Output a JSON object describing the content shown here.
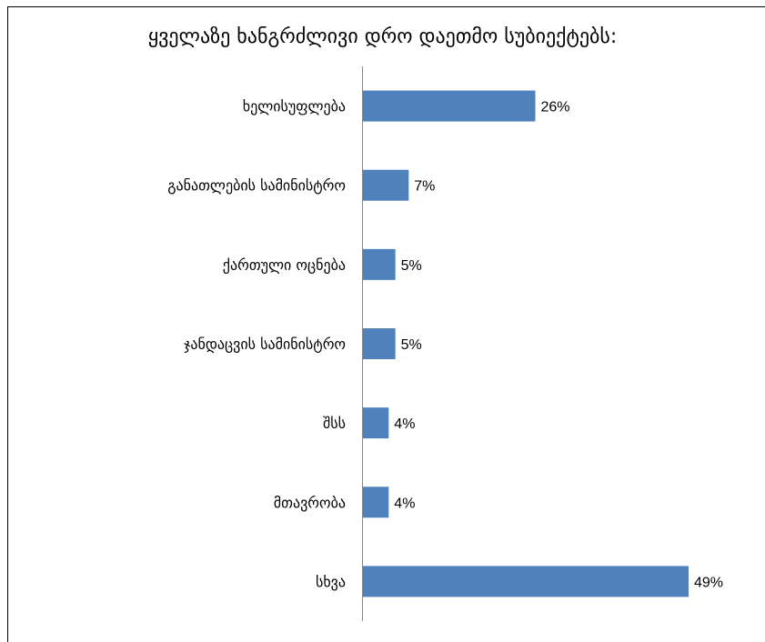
{
  "chart_data": {
    "type": "bar",
    "orientation": "horizontal",
    "title": "ყველაზე ხანგრძლივი დრო დაეთმო სუბიექტებს:",
    "categories": [
      "ხელისუფლება",
      "განათლების სამინისტრო",
      "ქართული ოცნება",
      "ჯანდაცვის სამინისტრო",
      "შსს",
      "მთავრობა",
      "სხვა"
    ],
    "values": [
      26,
      7,
      5,
      5,
      4,
      4,
      49
    ],
    "value_labels": [
      "26%",
      "7%",
      "5%",
      "5%",
      "4%",
      "4%",
      "49%"
    ],
    "unit": "%",
    "bar_color": "#4F81BD",
    "xlim": [
      0,
      49
    ],
    "grid": false,
    "legend": "none"
  }
}
